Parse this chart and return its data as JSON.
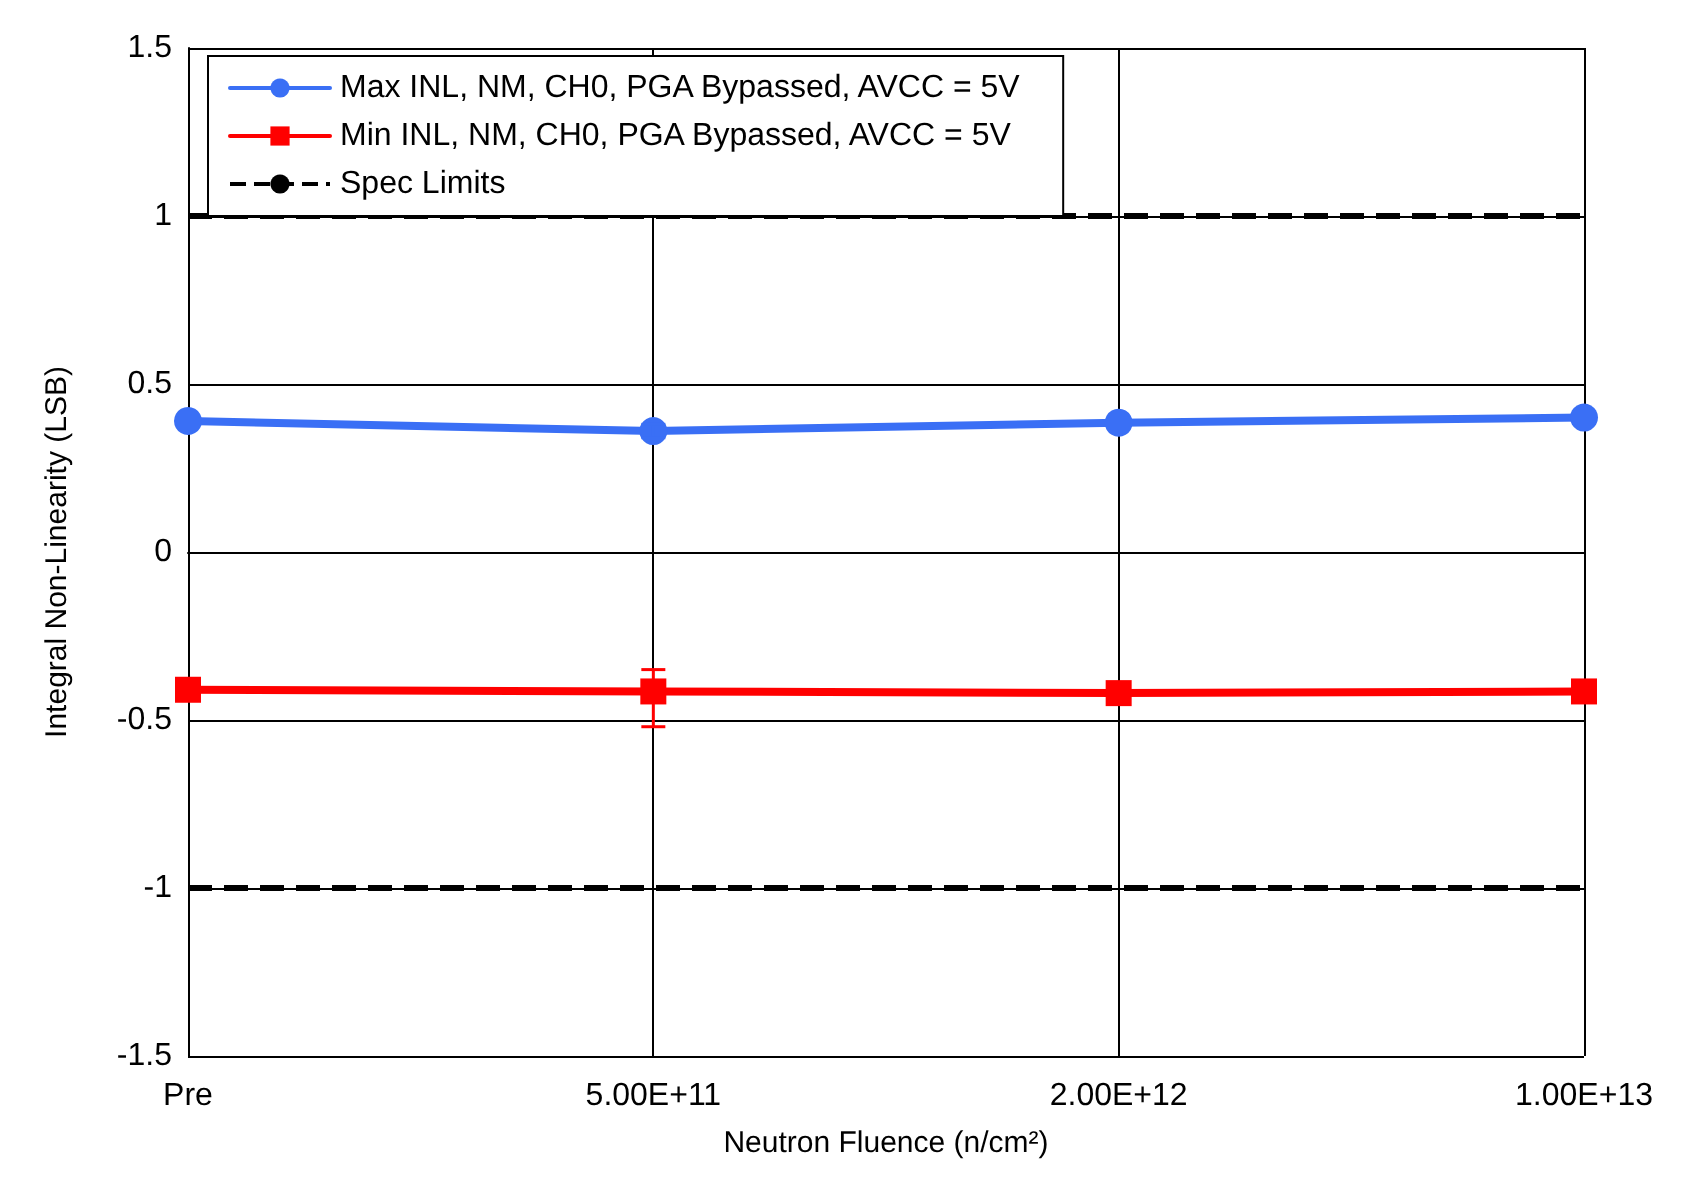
{
  "chart_data": {
    "type": "line",
    "xlabel": "Neutron Fluence (n/cm²)",
    "ylabel": "Integral Non-Linearity (LSB)",
    "categories": [
      "Pre",
      "5.00E+11",
      "2.00E+12",
      "1.00E+13"
    ],
    "series": [
      {
        "name": "Max INL, NM, CH0, PGA Bypassed, AVCC = 5V",
        "color": "#3a6ff5",
        "marker": "circle",
        "values": [
          0.39,
          0.36,
          0.385,
          0.4
        ],
        "errors": [
          null,
          [
            0.34,
            0.38
          ],
          null,
          null
        ]
      },
      {
        "name": "Min INL, NM, CH0, PGA Bypassed, AVCC = 5V",
        "color": "#ff0000",
        "marker": "square",
        "values": [
          -0.41,
          -0.415,
          -0.42,
          -0.415
        ],
        "errors": [
          null,
          [
            -0.52,
            -0.35
          ],
          null,
          null
        ]
      }
    ],
    "ref_lines": [
      {
        "axis": "y",
        "value": 1,
        "label": "Spec Limits",
        "color": "#000000",
        "line_style": "dashed"
      },
      {
        "axis": "y",
        "value": -1,
        "color": "#000000",
        "line_style": "dashed"
      }
    ],
    "ylim": [
      -1.5,
      1.5
    ],
    "yticks": [
      -1.5,
      -1,
      -0.5,
      0,
      0.5,
      1,
      1.5
    ],
    "grid": true,
    "legend": "top left",
    "line_style": "solid"
  }
}
